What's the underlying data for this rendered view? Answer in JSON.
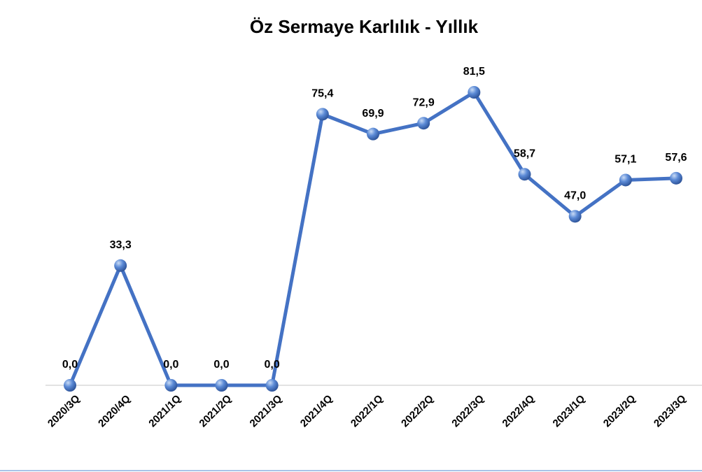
{
  "chart_data": {
    "type": "line",
    "title": "Öz Sermaye Karlılık - Yıllık",
    "categories": [
      "2020/3Q",
      "2020/4Q",
      "2021/1Q",
      "2021/2Q",
      "2021/3Q",
      "2021/4Q",
      "2022/1Q",
      "2022/2Q",
      "2022/3Q",
      "2022/4Q",
      "2023/1Q",
      "2023/2Q",
      "2023/3Q"
    ],
    "values": [
      0,
      33.3,
      0,
      0,
      0,
      75.4,
      69.9,
      72.9,
      81.5,
      58.7,
      47.0,
      57.1,
      57.6
    ],
    "value_labels": [
      "0,0",
      "33,3",
      "0,0",
      "0,0",
      "0,0",
      "75,4",
      "69,9",
      "72,9",
      "81,5",
      "58,7",
      "47,0",
      "57,1",
      "57,6"
    ],
    "color": "#4472c4"
  }
}
